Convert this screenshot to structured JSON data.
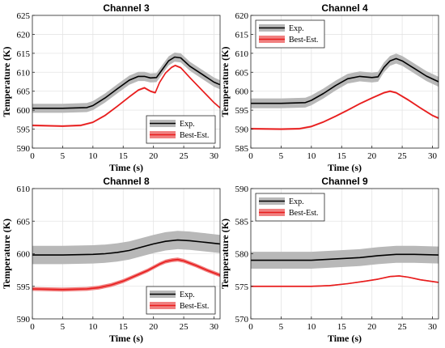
{
  "colors": {
    "exp_line": "#000000",
    "exp_band": "#b8b8b8",
    "est_line": "#e81c1c",
    "est_band": "#f08080"
  },
  "chart_data": [
    {
      "type": "line",
      "title": "Channel 3",
      "xlabel": "Time (s)",
      "ylabel": "Temperature (K)",
      "xlim": [
        0,
        31
      ],
      "ylim": [
        590,
        625
      ],
      "xticks": [
        0,
        5,
        10,
        15,
        20,
        25,
        30
      ],
      "yticks": [
        590,
        595,
        600,
        605,
        610,
        615,
        620,
        625
      ],
      "legend": {
        "position": "bottom-right",
        "entries": [
          "Exp.",
          "Best-Est."
        ]
      },
      "series": [
        {
          "name": "Exp.",
          "band_halfwidth": 1.2,
          "points": [
            [
              0,
              600.5
            ],
            [
              5,
              600.5
            ],
            [
              9,
              600.7
            ],
            [
              10,
              601.2
            ],
            [
              12,
              603.2
            ],
            [
              14,
              605.6
            ],
            [
              16,
              607.9
            ],
            [
              17.5,
              608.9
            ],
            [
              18.5,
              608.9
            ],
            [
              19.5,
              608.5
            ],
            [
              20.5,
              608.6
            ],
            [
              21.5,
              610.8
            ],
            [
              22.5,
              613.0
            ],
            [
              23.5,
              614.0
            ],
            [
              24.5,
              613.8
            ],
            [
              26,
              611.6
            ],
            [
              28,
              609.5
            ],
            [
              30,
              607.4
            ],
            [
              31,
              606.7
            ]
          ]
        },
        {
          "name": "Best-Est.",
          "band_halfwidth": 0.25,
          "points": [
            [
              0,
              596.0
            ],
            [
              5,
              595.8
            ],
            [
              8,
              596.0
            ],
            [
              10,
              596.8
            ],
            [
              12,
              598.6
            ],
            [
              14,
              601.0
            ],
            [
              16,
              603.5
            ],
            [
              17.5,
              605.3
            ],
            [
              18.5,
              605.9
            ],
            [
              19.5,
              605.0
            ],
            [
              20.3,
              604.6
            ],
            [
              21,
              607.3
            ],
            [
              22,
              609.8
            ],
            [
              23,
              611.3
            ],
            [
              23.6,
              611.8
            ],
            [
              24.5,
              611.2
            ],
            [
              26,
              608.6
            ],
            [
              28,
              605.3
            ],
            [
              30,
              602.0
            ],
            [
              31,
              600.6
            ]
          ]
        }
      ]
    },
    {
      "type": "line",
      "title": "Channel 4",
      "xlabel": "Time (s)",
      "ylabel": "Temperature (K)",
      "xlim": [
        0,
        31
      ],
      "ylim": [
        585,
        620
      ],
      "xticks": [
        0,
        5,
        10,
        15,
        20,
        25,
        30
      ],
      "yticks": [
        585,
        590,
        595,
        600,
        605,
        610,
        615,
        620
      ],
      "legend": {
        "position": "top-left",
        "entries": [
          "Exp.",
          "Best-Est."
        ]
      },
      "series": [
        {
          "name": "Exp.",
          "band_halfwidth": 1.3,
          "points": [
            [
              0,
              596.8
            ],
            [
              5,
              596.8
            ],
            [
              9,
              597.0
            ],
            [
              10,
              597.6
            ],
            [
              12,
              599.4
            ],
            [
              14,
              601.5
            ],
            [
              16,
              603.3
            ],
            [
              18,
              603.9
            ],
            [
              20,
              603.6
            ],
            [
              21,
              603.8
            ],
            [
              22,
              606.3
            ],
            [
              23,
              608.0
            ],
            [
              24,
              608.6
            ],
            [
              25,
              608.0
            ],
            [
              27,
              606.0
            ],
            [
              29,
              604.0
            ],
            [
              31,
              602.5
            ]
          ]
        },
        {
          "name": "Best-Est.",
          "band_halfwidth": 0.25,
          "points": [
            [
              0,
              590.1
            ],
            [
              5,
              590.0
            ],
            [
              8,
              590.1
            ],
            [
              10,
              590.7
            ],
            [
              12,
              591.9
            ],
            [
              14,
              593.4
            ],
            [
              16,
              595.0
            ],
            [
              18,
              596.7
            ],
            [
              20,
              598.2
            ],
            [
              22,
              599.6
            ],
            [
              23,
              600.0
            ],
            [
              24,
              599.6
            ],
            [
              26,
              597.7
            ],
            [
              28,
              595.6
            ],
            [
              30,
              593.6
            ],
            [
              31,
              592.9
            ]
          ]
        }
      ]
    },
    {
      "type": "line",
      "title": "Channel 8",
      "xlabel": "Time (s)",
      "ylabel": "Temperature (K)",
      "xlim": [
        0,
        31
      ],
      "ylim": [
        590,
        610
      ],
      "xticks": [
        0,
        5,
        10,
        15,
        20,
        25,
        30
      ],
      "yticks": [
        590,
        595,
        600,
        605,
        610
      ],
      "legend": {
        "position": "bottom-right",
        "entries": [
          "Exp.",
          "Best-Est."
        ]
      },
      "series": [
        {
          "name": "Exp.",
          "band_halfwidth": 1.4,
          "points": [
            [
              0,
              599.8
            ],
            [
              5,
              599.8
            ],
            [
              10,
              599.9
            ],
            [
              12,
              600.0
            ],
            [
              14,
              600.2
            ],
            [
              16,
              600.5
            ],
            [
              18,
              601.0
            ],
            [
              20,
              601.5
            ],
            [
              22,
              601.9
            ],
            [
              24,
              602.1
            ],
            [
              26,
              602.0
            ],
            [
              28,
              601.8
            ],
            [
              31,
              601.5
            ]
          ]
        },
        {
          "name": "Best-Est.",
          "band_halfwidth": 0.3,
          "points": [
            [
              0,
              594.6
            ],
            [
              5,
              594.5
            ],
            [
              9,
              594.6
            ],
            [
              11,
              594.8
            ],
            [
              13,
              595.2
            ],
            [
              15,
              595.8
            ],
            [
              17,
              596.6
            ],
            [
              19,
              597.4
            ],
            [
              20,
              597.9
            ],
            [
              21,
              598.4
            ],
            [
              22,
              598.8
            ],
            [
              23,
              599.0
            ],
            [
              24,
              599.1
            ],
            [
              25,
              598.9
            ],
            [
              27,
              598.2
            ],
            [
              29,
              597.4
            ],
            [
              31,
              596.7
            ]
          ]
        }
      ]
    },
    {
      "type": "line",
      "title": "Channel 9",
      "xlabel": "Time (s)",
      "ylabel": "Temperature (K)",
      "xlim": [
        0,
        31
      ],
      "ylim": [
        570,
        590
      ],
      "xticks": [
        0,
        5,
        10,
        15,
        20,
        25,
        30
      ],
      "yticks": [
        570,
        575,
        580,
        585,
        590
      ],
      "legend": {
        "position": "top-left",
        "entries": [
          "Exp.",
          "Best-Est."
        ]
      },
      "series": [
        {
          "name": "Exp.",
          "band_halfwidth": 1.3,
          "points": [
            [
              0,
              579.0
            ],
            [
              5,
              579.0
            ],
            [
              10,
              579.0
            ],
            [
              14,
              579.2
            ],
            [
              18,
              579.4
            ],
            [
              21,
              579.7
            ],
            [
              24,
              579.9
            ],
            [
              27,
              579.9
            ],
            [
              31,
              579.8
            ]
          ]
        },
        {
          "name": "Best-Est.",
          "band_halfwidth": 0.1,
          "points": [
            [
              0,
              575.0
            ],
            [
              5,
              575.0
            ],
            [
              10,
              575.0
            ],
            [
              13,
              575.1
            ],
            [
              16,
              575.4
            ],
            [
              19,
              575.8
            ],
            [
              21,
              576.1
            ],
            [
              23,
              576.5
            ],
            [
              24.5,
              576.6
            ],
            [
              26,
              576.4
            ],
            [
              28,
              576.0
            ],
            [
              31,
              575.6
            ]
          ]
        }
      ]
    }
  ]
}
